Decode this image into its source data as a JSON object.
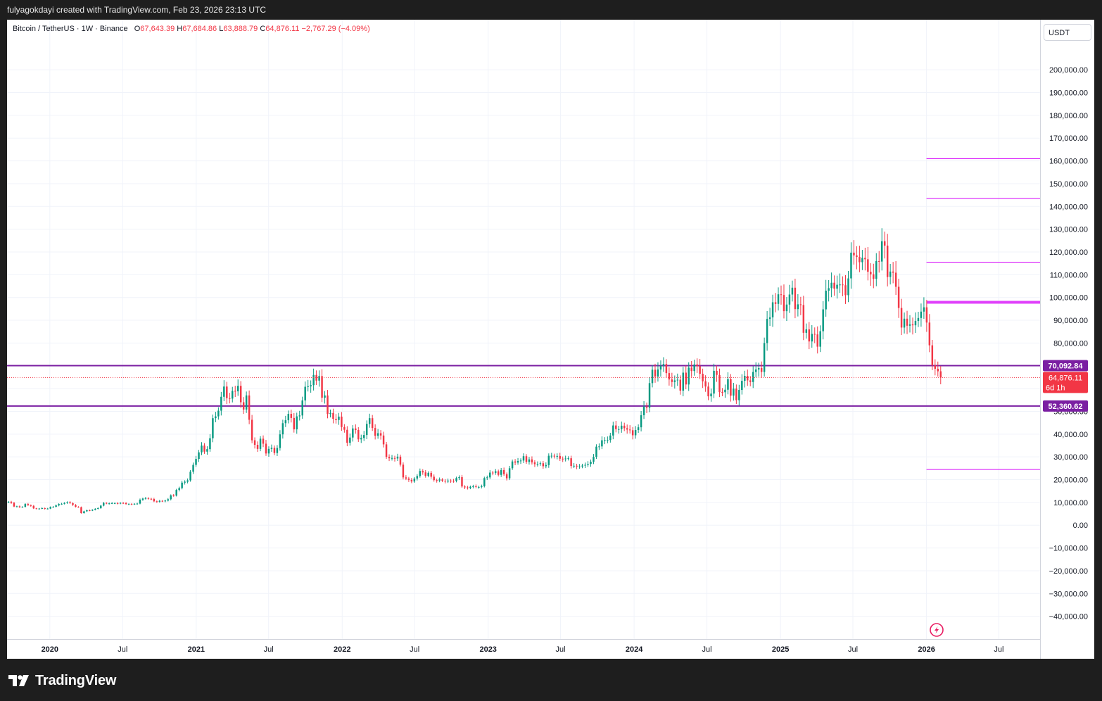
{
  "header": {
    "credit": "fulyagokdayi created with TradingView.com, Feb 23, 2026 23:13 UTC"
  },
  "legend": {
    "symbol": "Bitcoin / TetherUS · 1W · Binance",
    "o_label": "O",
    "o": "67,643.39",
    "h_label": "H",
    "h": "67,684.86",
    "l_label": "L",
    "l": "63,888.79",
    "c_label": "C",
    "c": "64,876.11",
    "change": "−2,767.29 (−4.09%)"
  },
  "currency": "USDT",
  "footer": {
    "brand": "TradingView",
    "logo": "tradingview-logo-icon"
  },
  "colors": {
    "up": "#089981",
    "down": "#f23645",
    "line_purple": "#7b1fa2",
    "line_magenta": "#e040fb",
    "line_pink": "#d500f9",
    "grid": "#f0f3fa",
    "axis_text": "#131722"
  },
  "chart_data": {
    "type": "candlestick",
    "y_range": [
      -50000,
      222000
    ],
    "y_ticks": [
      200000,
      190000,
      180000,
      170000,
      160000,
      150000,
      140000,
      130000,
      120000,
      110000,
      100000,
      90000,
      80000,
      70000,
      60000,
      50000,
      40000,
      30000,
      20000,
      10000,
      0,
      -10000,
      -20000,
      -30000,
      -40000
    ],
    "y_tick_labels": [
      "200,000.00",
      "190,000.00",
      "180,000.00",
      "170,000.00",
      "160,000.00",
      "150,000.00",
      "140,000.00",
      "130,000.00",
      "120,000.00",
      "110,000.00",
      "100,000.00",
      "90,000.00",
      "80,000.00",
      "70,000.00",
      "60,000.00",
      "50,000.00",
      "40,000.00",
      "30,000.00",
      "20,000.00",
      "10,000.00",
      "0.00",
      "−10,000.00",
      "−20,000.00",
      "−30,000.00",
      "−40,000.00"
    ],
    "x_range": [
      "2019-09-16",
      "2026-10-12"
    ],
    "x_ticks": [
      {
        "label": "2020",
        "date": "2020-01-01",
        "bold": true
      },
      {
        "label": "Jul",
        "date": "2020-07-01",
        "bold": false
      },
      {
        "label": "2021",
        "date": "2021-01-01",
        "bold": true
      },
      {
        "label": "Jul",
        "date": "2021-07-01",
        "bold": false
      },
      {
        "label": "2022",
        "date": "2022-01-01",
        "bold": true
      },
      {
        "label": "Jul",
        "date": "2022-07-01",
        "bold": false
      },
      {
        "label": "2023",
        "date": "2023-01-01",
        "bold": true
      },
      {
        "label": "Jul",
        "date": "2023-07-01",
        "bold": false
      },
      {
        "label": "2024",
        "date": "2024-01-01",
        "bold": true
      },
      {
        "label": "Jul",
        "date": "2024-07-01",
        "bold": false
      },
      {
        "label": "2025",
        "date": "2025-01-01",
        "bold": true
      },
      {
        "label": "Jul",
        "date": "2025-07-01",
        "bold": false
      },
      {
        "label": "2026",
        "date": "2026-01-01",
        "bold": true
      },
      {
        "label": "Jul",
        "date": "2026-07-01",
        "bold": false
      }
    ],
    "candle_start_date": "2019-09-16",
    "candle_interval": "1W",
    "closes": [
      10300,
      9800,
      8200,
      8300,
      7900,
      8100,
      9300,
      8800,
      8500,
      7400,
      7200,
      7300,
      7500,
      7200,
      7300,
      8000,
      8100,
      8700,
      9300,
      9400,
      9800,
      10100,
      9700,
      8900,
      8100,
      7900,
      5300,
      6100,
      6600,
      6400,
      6800,
      7200,
      7500,
      8600,
      9800,
      9500,
      9600,
      9700,
      9700,
      9500,
      9800,
      9700,
      9300,
      9300,
      9200,
      9400,
      9500,
      11200,
      11700,
      11900,
      11600,
      11500,
      10500,
      10300,
      10700,
      10500,
      10800,
      11400,
      13100,
      13000,
      15500,
      16300,
      18700,
      19100,
      19700,
      23500,
      26500,
      29100,
      32000,
      35000,
      32300,
      33400,
      38200,
      47000,
      47800,
      50300,
      56400,
      60900,
      55800,
      55600,
      59000,
      58800,
      61200,
      54000,
      50800,
      57000,
      46300,
      37300,
      35300,
      33500,
      38000,
      35800,
      31500,
      33500,
      34000,
      31700,
      33900,
      39900,
      44800,
      46100,
      48900,
      47100,
      42100,
      47800,
      48200,
      54800,
      60800,
      61000,
      61500,
      66000,
      63500,
      65500,
      56000,
      57000,
      48800,
      49300,
      46700,
      46200,
      47700,
      43100,
      41900,
      36200,
      38500,
      42500,
      41800,
      37700,
      38300,
      39600,
      44500,
      47000,
      42700,
      39300,
      40400,
      39400,
      35500,
      30000,
      29400,
      29500,
      29300,
      30100,
      26600,
      21000,
      20500,
      19900,
      19200,
      20500,
      21600,
      23800,
      23200,
      21700,
      23000,
      21300,
      19800,
      19600,
      20100,
      19500,
      19200,
      19600,
      19500,
      19400,
      20700,
      21100,
      17000,
      16600,
      16300,
      16900,
      17100,
      16800,
      16800,
      17100,
      20700,
      21000,
      23100,
      23000,
      23700,
      22100,
      24200,
      22400,
      20600,
      25000,
      28000,
      27500,
      28200,
      28400,
      30300,
      27800,
      28900,
      27600,
      26800,
      26900,
      27200,
      25900,
      26400,
      30500,
      30500,
      30200,
      30400,
      29200,
      29100,
      29300,
      29400,
      26000,
      26100,
      25800,
      25800,
      26200,
      26500,
      26900,
      27900,
      30000,
      34500,
      34600,
      37300,
      37400,
      37400,
      39400,
      43800,
      42200,
      42200,
      43700,
      42600,
      42000,
      41700,
      39500,
      41800,
      43000,
      48300,
      52100,
      51600,
      62400,
      68300,
      65300,
      68400,
      70000,
      70800,
      66800,
      64000,
      62900,
      63600,
      63900,
      59100,
      67000,
      61800,
      69200,
      67700,
      70600,
      69800,
      66500,
      63200,
      60900,
      56600,
      57800,
      67800,
      66000,
      58500,
      58400,
      59500,
      64200,
      56900,
      60000,
      54900,
      59400,
      63400,
      65600,
      63600,
      62900,
      67300,
      68400,
      69000,
      67300,
      80000,
      90600,
      91300,
      97900,
      97200,
      101400,
      101100,
      94000,
      96900,
      101300,
      104300,
      94900,
      97000,
      96700,
      84500,
      86000,
      80700,
      84000,
      83800,
      78400,
      85200,
      94800,
      103000,
      104100,
      106500,
      103900,
      105600,
      105700,
      105400,
      101000,
      108400,
      119700,
      118500,
      117800,
      115500,
      117400,
      116800,
      111300,
      110200,
      108200,
      116000,
      115800,
      124700,
      122800,
      109000,
      111400,
      110900,
      104700,
      95400,
      86800,
      90700,
      87600,
      88200,
      87800,
      89700,
      91000,
      93800,
      95700,
      89000,
      79000,
      70200,
      68700,
      67600,
      64876
    ],
    "horizontal_lines": [
      {
        "value": 70092.84,
        "label": "70,092.84",
        "color": "#7b1fa2",
        "width": 2,
        "start": "2019-09-16",
        "tag": true
      },
      {
        "value": 52360.62,
        "label": "52,360.62",
        "color": "#7b1fa2",
        "width": 2,
        "start": "2019-09-16",
        "tag": true
      },
      {
        "value": 161000,
        "color": "#d500f9",
        "width": 1,
        "start": "2026-01-01"
      },
      {
        "value": 143500,
        "color": "#d500f9",
        "width": 1,
        "start": "2026-01-01"
      },
      {
        "value": 115500,
        "color": "#d500f9",
        "width": 1,
        "start": "2026-01-01"
      },
      {
        "value": 97900,
        "color": "#e040fb",
        "width": 4,
        "start": "2026-01-01"
      },
      {
        "value": 24500,
        "color": "#d500f9",
        "width": 1,
        "start": "2026-01-01"
      }
    ],
    "last_price": {
      "value": 64876.11,
      "label": "64,876.11",
      "countdown": "6d 1h",
      "color": "#f23645"
    }
  }
}
